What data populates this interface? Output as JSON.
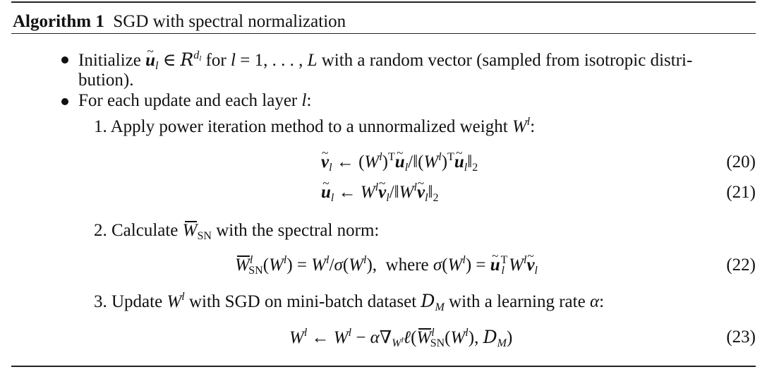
{
  "algorithm": {
    "label": "Algorithm 1",
    "title": "SGD with spectral normalization"
  },
  "bullets": [
    {
      "prefix": "Initialize",
      "text_mid": "for",
      "text_end": "with a random vector (sampled from isotropic distri-",
      "text_cont": "bution)."
    },
    {
      "text": "For each update and each layer"
    }
  ],
  "steps": [
    {
      "number": "1.",
      "text": "Apply power iteration method to a unnormalized weight"
    },
    {
      "number": "2.",
      "text_a": "Calculate",
      "text_b": "with the spectral norm:"
    },
    {
      "number": "3.",
      "text_a": "Update",
      "text_b": "with SGD on mini-batch dataset",
      "text_c": "with a learning rate"
    }
  ],
  "equations": {
    "where": "where",
    "numbers": [
      "(20)",
      "(21)",
      "(22)",
      "(23)"
    ]
  }
}
